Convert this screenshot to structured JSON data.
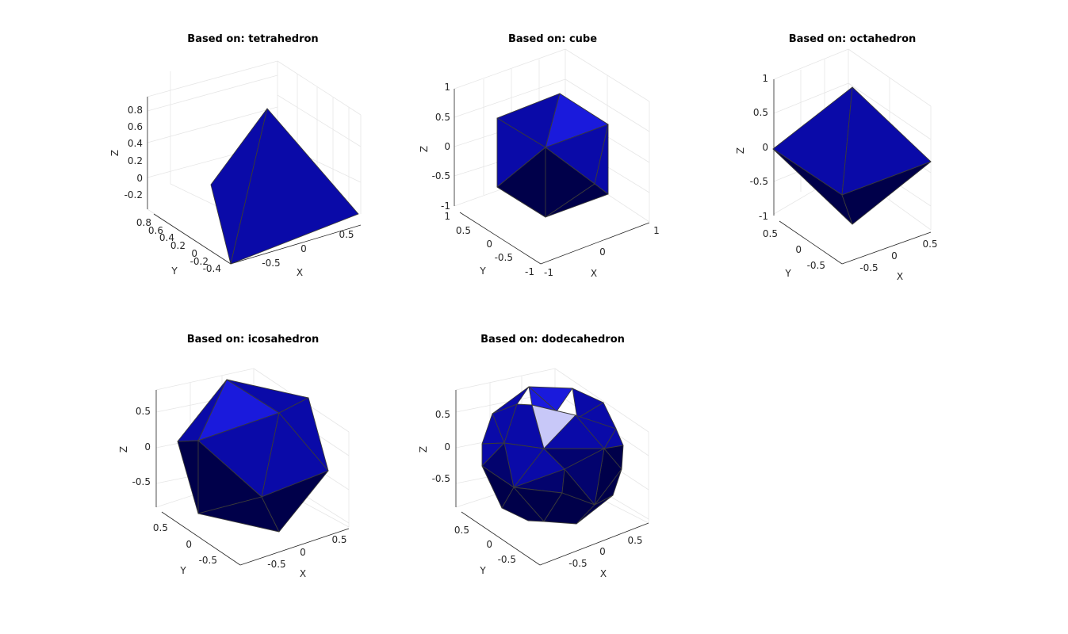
{
  "colors": {
    "front": "#0a0aa8",
    "light": "#1a1adc",
    "dark": "#00004a",
    "mid": "#03036e",
    "highlight": "#c8c8f8"
  },
  "chart_data": [
    {
      "type": "3d-mesh",
      "title": "Based on: tetrahedron",
      "xlabel": "X",
      "ylabel": "Y",
      "zlabel": "Z",
      "xticks": [
        "-0.5",
        "0",
        "0.5"
      ],
      "yticks": [
        "-0.4",
        "-0.2",
        "0",
        "0.2",
        "0.4",
        "0.6",
        "0.8"
      ],
      "zticks": [
        "-0.2",
        "0",
        "0.2",
        "0.4",
        "0.6",
        "0.8"
      ],
      "grid": true
    },
    {
      "type": "3d-mesh",
      "title": "Based on: cube",
      "xlabel": "X",
      "ylabel": "Y",
      "zlabel": "Z",
      "xticks": [
        "-1",
        "0",
        "1"
      ],
      "yticks": [
        "-1",
        "-0.5",
        "0",
        "0.5",
        "1"
      ],
      "zticks": [
        "-1",
        "-0.5",
        "0",
        "0.5",
        "1"
      ],
      "grid": true
    },
    {
      "type": "3d-mesh",
      "title": "Based on: octahedron",
      "xlabel": "X",
      "ylabel": "Y",
      "zlabel": "Z",
      "xticks": [
        "-0.5",
        "0",
        "0.5"
      ],
      "yticks": [
        "-0.5",
        "0",
        "0.5"
      ],
      "zticks": [
        "-1",
        "-0.5",
        "0",
        "0.5",
        "1"
      ],
      "grid": true
    },
    {
      "type": "3d-mesh",
      "title": "Based on: icosahedron",
      "xlabel": "X",
      "ylabel": "Y",
      "zlabel": "Z",
      "xticks": [
        "-0.5",
        "0",
        "0.5"
      ],
      "yticks": [
        "-0.5",
        "0",
        "0.5"
      ],
      "zticks": [
        "-0.5",
        "0",
        "0.5"
      ],
      "grid": true
    },
    {
      "type": "3d-mesh",
      "title": "Based on: dodecahedron",
      "xlabel": "X",
      "ylabel": "Y",
      "zlabel": "Z",
      "xticks": [
        "-0.5",
        "0",
        "0.5"
      ],
      "yticks": [
        "-0.5",
        "0",
        "0.5"
      ],
      "zticks": [
        "-0.5",
        "0",
        "0.5"
      ],
      "grid": true
    }
  ]
}
